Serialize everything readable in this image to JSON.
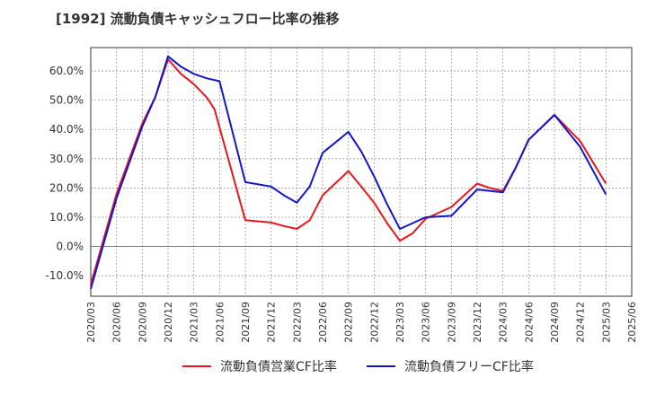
{
  "chart_data": {
    "type": "line",
    "title": "[1992]  流動負債キャッシュフロー比率の推移",
    "xlabel": "",
    "ylabel": "",
    "ylim": [
      -17,
      68
    ],
    "yticks": [
      -10,
      0,
      10,
      20,
      30,
      40,
      50,
      60
    ],
    "ytick_labels": [
      "-10.0%",
      "0.0%",
      "10.0%",
      "20.0%",
      "30.0%",
      "40.0%",
      "50.0%",
      "60.0%"
    ],
    "x_tick_labels": [
      "2020/03",
      "2020/06",
      "2020/09",
      "2020/12",
      "2021/03",
      "2021/06",
      "2021/09",
      "2021/12",
      "2022/03",
      "2022/06",
      "2022/09",
      "2022/12",
      "2023/03",
      "2023/06",
      "2023/09",
      "2023/12",
      "2024/03",
      "2024/06",
      "2024/09",
      "2024/12",
      "2025/03",
      "2025/06"
    ],
    "grid": true,
    "legend_position": "bottom",
    "series": [
      {
        "name": "流動負債営業CF比率",
        "color": "#e8171b",
        "points": [
          [
            0,
            -13.0
          ],
          [
            1,
            18.0
          ],
          [
            2,
            42.0
          ],
          [
            2.5,
            51.0
          ],
          [
            3,
            64.0
          ],
          [
            3.5,
            59.0
          ],
          [
            4,
            55.5
          ],
          [
            4.5,
            51.0
          ],
          [
            4.8,
            47.0
          ],
          [
            6,
            9.0
          ],
          [
            7,
            8.2
          ],
          [
            7.5,
            7.0
          ],
          [
            8,
            6.0
          ],
          [
            8.5,
            9.0
          ],
          [
            9,
            17.5
          ],
          [
            10,
            25.8
          ],
          [
            10.5,
            20.5
          ],
          [
            11,
            15.0
          ],
          [
            11.5,
            8.0
          ],
          [
            12,
            2.0
          ],
          [
            12.5,
            4.5
          ],
          [
            13,
            9.5
          ],
          [
            14,
            13.5
          ],
          [
            15,
            21.5
          ],
          [
            15.5,
            20.0
          ],
          [
            16,
            19.0
          ],
          [
            16.5,
            27.0
          ],
          [
            17,
            36.5
          ],
          [
            18,
            45.0
          ],
          [
            19,
            36.0
          ],
          [
            20,
            21.5
          ]
        ]
      },
      {
        "name": "流動負債フリーCF比率",
        "color": "#1414cc",
        "points": [
          [
            0,
            -14.5
          ],
          [
            1,
            16.5
          ],
          [
            2,
            41.0
          ],
          [
            2.5,
            51.0
          ],
          [
            3,
            65.0
          ],
          [
            3.5,
            61.5
          ],
          [
            4,
            59.0
          ],
          [
            4.5,
            57.5
          ],
          [
            5,
            56.5
          ],
          [
            6,
            22.0
          ],
          [
            7,
            20.5
          ],
          [
            7.5,
            17.5
          ],
          [
            8,
            15.0
          ],
          [
            8.5,
            20.5
          ],
          [
            9,
            32.0
          ],
          [
            10,
            39.2
          ],
          [
            10.5,
            32.5
          ],
          [
            11,
            24.0
          ],
          [
            11.5,
            14.5
          ],
          [
            12,
            6.0
          ],
          [
            13,
            10.0
          ],
          [
            14,
            10.5
          ],
          [
            15,
            19.5
          ],
          [
            16,
            18.5
          ],
          [
            16.5,
            27.0
          ],
          [
            17,
            36.5
          ],
          [
            18,
            45.0
          ],
          [
            19,
            34.0
          ],
          [
            20,
            17.8
          ]
        ]
      }
    ]
  }
}
